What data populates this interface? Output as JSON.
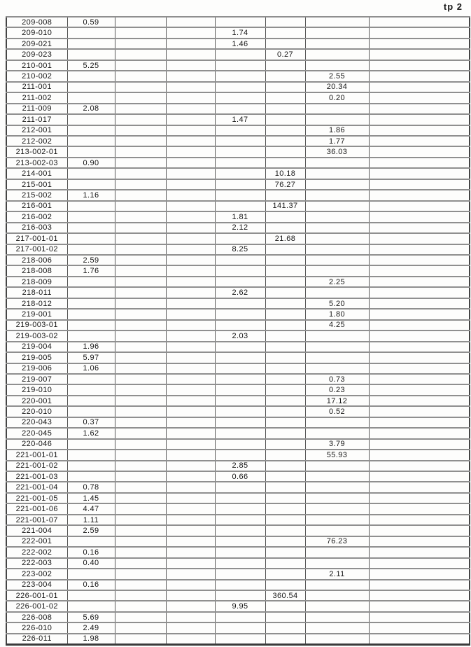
{
  "page_label": "tp 2",
  "table": {
    "num_columns": 8,
    "rows": [
      [
        "209-008",
        "0.59",
        "",
        "",
        "",
        "",
        "",
        ""
      ],
      [
        "209-010",
        "",
        "",
        "",
        "1.74",
        "",
        "",
        ""
      ],
      [
        "209-021",
        "",
        "",
        "",
        "1.46",
        "",
        "",
        ""
      ],
      [
        "209-023",
        "",
        "",
        "",
        "",
        "0.27",
        "",
        ""
      ],
      [
        "210-001",
        "5.25",
        "",
        "",
        "",
        "",
        "",
        ""
      ],
      [
        "210-002",
        "",
        "",
        "",
        "",
        "",
        "2.55",
        ""
      ],
      [
        "211-001",
        "",
        "",
        "",
        "",
        "",
        "20.34",
        ""
      ],
      [
        "211-002",
        "",
        "",
        "",
        "",
        "",
        "0.20",
        ""
      ],
      [
        "211-009",
        "2.08",
        "",
        "",
        "",
        "",
        "",
        ""
      ],
      [
        "211-017",
        "",
        "",
        "",
        "1.47",
        "",
        "",
        ""
      ],
      [
        "212-001",
        "",
        "",
        "",
        "",
        "",
        "1.86",
        ""
      ],
      [
        "212-002",
        "",
        "",
        "",
        "",
        "",
        "1.77",
        ""
      ],
      [
        "213-002-01",
        "",
        "",
        "",
        "",
        "",
        "36.03",
        ""
      ],
      [
        "213-002-03",
        "0.90",
        "",
        "",
        "",
        "",
        "",
        ""
      ],
      [
        "214-001",
        "",
        "",
        "",
        "",
        "10.18",
        "",
        ""
      ],
      [
        "215-001",
        "",
        "",
        "",
        "",
        "76.27",
        "",
        ""
      ],
      [
        "215-002",
        "1.16",
        "",
        "",
        "",
        "",
        "",
        ""
      ],
      [
        "216-001",
        "",
        "",
        "",
        "",
        "141.37",
        "",
        ""
      ],
      [
        "216-002",
        "",
        "",
        "",
        "1.81",
        "",
        "",
        ""
      ],
      [
        "216-003",
        "",
        "",
        "",
        "2.12",
        "",
        "",
        ""
      ],
      [
        "217-001-01",
        "",
        "",
        "",
        "",
        "21.68",
        "",
        ""
      ],
      [
        "217-001-02",
        "",
        "",
        "",
        "8.25",
        "",
        "",
        ""
      ],
      [
        "218-006",
        "2.59",
        "",
        "",
        "",
        "",
        "",
        ""
      ],
      [
        "218-008",
        "1.76",
        "",
        "",
        "",
        "",
        "",
        ""
      ],
      [
        "218-009",
        "",
        "",
        "",
        "",
        "",
        "2.25",
        ""
      ],
      [
        "218-011",
        "",
        "",
        "",
        "2.62",
        "",
        "",
        ""
      ],
      [
        "218-012",
        "",
        "",
        "",
        "",
        "",
        "5.20",
        ""
      ],
      [
        "219-001",
        "",
        "",
        "",
        "",
        "",
        "1.80",
        ""
      ],
      [
        "219-003-01",
        "",
        "",
        "",
        "",
        "",
        "4.25",
        ""
      ],
      [
        "219-003-02",
        "",
        "",
        "",
        "2.03",
        "",
        "",
        ""
      ],
      [
        "219-004",
        "1.96",
        "",
        "",
        "",
        "",
        "",
        ""
      ],
      [
        "219-005",
        "5.97",
        "",
        "",
        "",
        "",
        "",
        ""
      ],
      [
        "219-006",
        "1.06",
        "",
        "",
        "",
        "",
        "",
        ""
      ],
      [
        "219-007",
        "",
        "",
        "",
        "",
        "",
        "0.73",
        ""
      ],
      [
        "219-010",
        "",
        "",
        "",
        "",
        "",
        "0.23",
        ""
      ],
      [
        "220-001",
        "",
        "",
        "",
        "",
        "",
        "17.12",
        ""
      ],
      [
        "220-010",
        "",
        "",
        "",
        "",
        "",
        "0.52",
        ""
      ],
      [
        "220-043",
        "0.37",
        "",
        "",
        "",
        "",
        "",
        ""
      ],
      [
        "220-045",
        "1.62",
        "",
        "",
        "",
        "",
        "",
        ""
      ],
      [
        "220-046",
        "",
        "",
        "",
        "",
        "",
        "3.79",
        ""
      ],
      [
        "221-001-01",
        "",
        "",
        "",
        "",
        "",
        "55.93",
        ""
      ],
      [
        "221-001-02",
        "",
        "",
        "",
        "2.85",
        "",
        "",
        ""
      ],
      [
        "221-001-03",
        "",
        "",
        "",
        "0.66",
        "",
        "",
        ""
      ],
      [
        "221-001-04",
        "0.78",
        "",
        "",
        "",
        "",
        "",
        ""
      ],
      [
        "221-001-05",
        "1.45",
        "",
        "",
        "",
        "",
        "",
        ""
      ],
      [
        "221-001-06",
        "4.47",
        "",
        "",
        "",
        "",
        "",
        ""
      ],
      [
        "221-001-07",
        "1.11",
        "",
        "",
        "",
        "",
        "",
        ""
      ],
      [
        "221-004",
        "2.59",
        "",
        "",
        "",
        "",
        "",
        ""
      ],
      [
        "222-001",
        "",
        "",
        "",
        "",
        "",
        "76.23",
        ""
      ],
      [
        "222-002",
        "0.16",
        "",
        "",
        "",
        "",
        "",
        ""
      ],
      [
        "222-003",
        "0.40",
        "",
        "",
        "",
        "",
        "",
        ""
      ],
      [
        "223-002",
        "",
        "",
        "",
        "",
        "",
        "2.11",
        ""
      ],
      [
        "223-004",
        "0.16",
        "",
        "",
        "",
        "",
        "",
        ""
      ],
      [
        "226-001-01",
        "",
        "",
        "",
        "",
        "360.54",
        "",
        ""
      ],
      [
        "226-001-02",
        "",
        "",
        "",
        "9.95",
        "",
        "",
        ""
      ],
      [
        "226-008",
        "5.69",
        "",
        "",
        "",
        "",
        "",
        ""
      ],
      [
        "226-010",
        "2.49",
        "",
        "",
        "",
        "",
        "",
        ""
      ],
      [
        "226-011",
        "1.98",
        "",
        "",
        "",
        "",
        "",
        ""
      ]
    ]
  }
}
